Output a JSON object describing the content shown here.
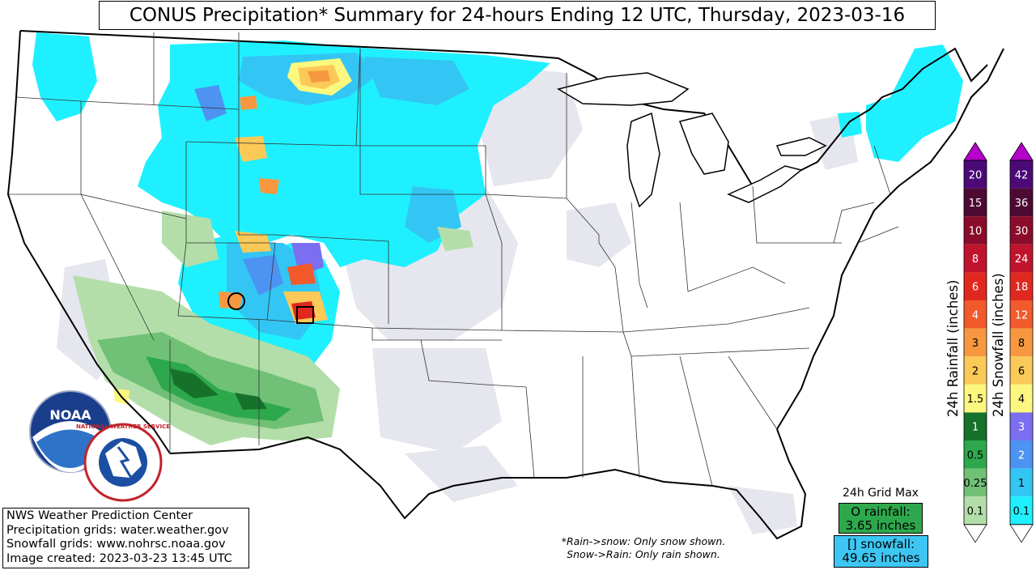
{
  "title": "CONUS Precipitation* Summary for 24-hours Ending 12 UTC, Thursday, 2023-03-16",
  "credits": {
    "line1": "NWS Weather Prediction Center",
    "line2": "Precipitation grids: water.weather.gov",
    "line3": "Snowfall grids: www.nohrsc.noaa.gov",
    "line4": "Image created: 2023-03-23 13:45 UTC"
  },
  "note": {
    "line1": "*Rain->snow: Only snow shown.",
    "line2": "Snow->Rain: Only rain shown."
  },
  "grid_max": {
    "label": "24h Grid Max",
    "rain_line1": "O rainfall:",
    "rain_line2": "3.65 inches",
    "snow_line1": "[] snowfall:",
    "snow_line2": "49.65 inches"
  },
  "logos": {
    "noaa_text": "NOAA",
    "nws_text": "NATIONAL WEATHER SERVICE"
  },
  "rain_legend": {
    "label": "24h Rainfall (inches)",
    "levels": [
      {
        "label": "20",
        "color": "#4b0a78"
      },
      {
        "label": "15",
        "color": "#4d0a33"
      },
      {
        "label": "10",
        "color": "#8a0c2a"
      },
      {
        "label": "8",
        "color": "#c0142e"
      },
      {
        "label": "6",
        "color": "#e0281f"
      },
      {
        "label": "4",
        "color": "#f35a2b"
      },
      {
        "label": "3",
        "color": "#f79840"
      },
      {
        "label": "2",
        "color": "#fbc957"
      },
      {
        "label": "1.5",
        "color": "#fcf77f"
      },
      {
        "label": "1",
        "color": "#16712b"
      },
      {
        "label": "0.5",
        "color": "#2ea84c"
      },
      {
        "label": "0.25",
        "color": "#70c176"
      },
      {
        "label": "0.1",
        "color": "#b3dea9"
      }
    ]
  },
  "snow_legend": {
    "label": "24h Snowfall (inches)",
    "levels": [
      {
        "label": "42",
        "color": "#4b0a78"
      },
      {
        "label": "36",
        "color": "#4d0a33"
      },
      {
        "label": "30",
        "color": "#8a0c2a"
      },
      {
        "label": "24",
        "color": "#c0142e"
      },
      {
        "label": "18",
        "color": "#e0281f"
      },
      {
        "label": "12",
        "color": "#f35a2b"
      },
      {
        "label": "8",
        "color": "#f79840"
      },
      {
        "label": "6",
        "color": "#fbc957"
      },
      {
        "label": "4",
        "color": "#fcf77f"
      },
      {
        "label": "3",
        "color": "#7c6ef0"
      },
      {
        "label": "2",
        "color": "#4d93f2"
      },
      {
        "label": "1",
        "color": "#33c6f4"
      },
      {
        "label": "0.1",
        "color": "#1ff0ff"
      }
    ]
  },
  "colors": {
    "trace": "#e5e6ee",
    "snow_light": "#1ff0ff",
    "snow_mid": "#33c6f4",
    "rain_light": "#b3dea9",
    "rain_mid": "#70c176"
  }
}
